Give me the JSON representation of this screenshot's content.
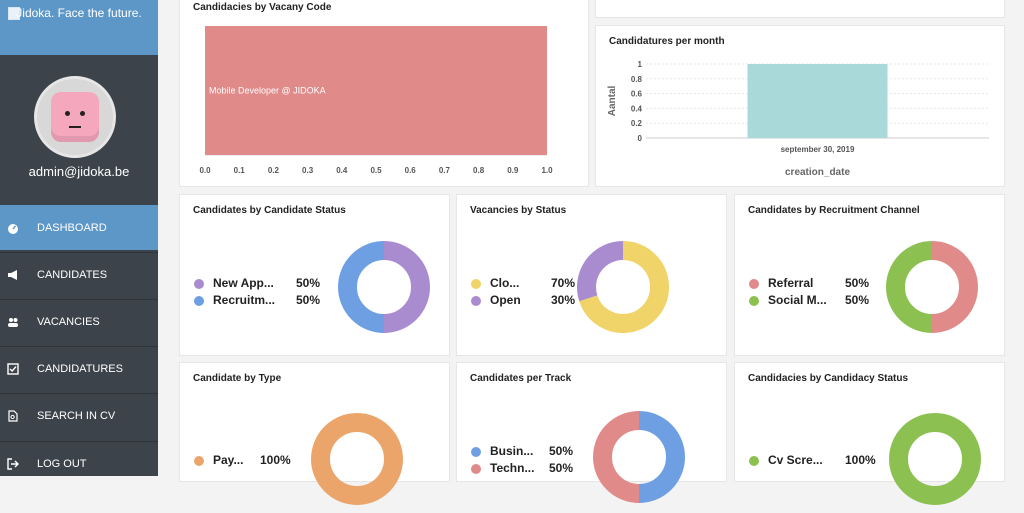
{
  "brand": {
    "text": "Jidoka. Face the future."
  },
  "user": {
    "email": "admin@jidoka.be"
  },
  "nav": [
    {
      "label": "DASHBOARD",
      "icon": "dashboard-icon",
      "active": true
    },
    {
      "label": "CANDIDATES",
      "icon": "megaphone-icon",
      "active": false
    },
    {
      "label": "VACANCIES",
      "icon": "users-icon",
      "active": false
    },
    {
      "label": "CANDIDATURES",
      "icon": "check-square-icon",
      "active": false
    },
    {
      "label": "SEARCH IN CV",
      "icon": "file-search-icon",
      "active": false
    },
    {
      "label": "LOG OUT",
      "icon": "logout-icon",
      "active": false
    }
  ],
  "cards": {
    "vacancy_code": {
      "title": "Candidacies by Vacany Code"
    },
    "per_month": {
      "title": "Candidatures per month"
    },
    "candidate_status": {
      "title": "Candidates by Candidate Status"
    },
    "vacancy_status": {
      "title": "Vacancies by Status"
    },
    "recruitment_channel": {
      "title": "Candidates by Recruitment Channel"
    },
    "candidate_type": {
      "title": "Candidate by Type"
    },
    "per_track": {
      "title": "Candidates per Track"
    },
    "candidacy_status": {
      "title": "Candidacies by Candidacy Status"
    }
  },
  "chart_data": [
    {
      "id": "vacancy_code",
      "type": "bar",
      "orientation": "horizontal",
      "title": "Candidacies by Vacany Code",
      "categories": [
        "Mobile Developer @ JIDOKA"
      ],
      "values": [
        1.0
      ],
      "xlim": [
        0,
        1.0
      ],
      "x_ticks": [
        "0.0",
        "0.1",
        "0.2",
        "0.3",
        "0.4",
        "0.5",
        "0.6",
        "0.7",
        "0.8",
        "0.9",
        "1.0"
      ],
      "color": "#e08a8a"
    },
    {
      "id": "per_month",
      "type": "bar",
      "title": "Candidatures per month",
      "categories": [
        "september 30, 2019"
      ],
      "values": [
        1
      ],
      "ylabel": "Aantal",
      "xlabel": "creation_date",
      "ylim": [
        0,
        1
      ],
      "y_ticks": [
        "0",
        "0.2",
        "0.4",
        "0.6",
        "0.8",
        "1"
      ],
      "color": "#a9d9d9"
    },
    {
      "id": "candidate_status",
      "type": "pie",
      "title": "Candidates by Candidate Status",
      "slices": [
        {
          "label": "New App...",
          "display": "50%",
          "value": 50,
          "color": "#a98ccf"
        },
        {
          "label": "Recruitm...",
          "display": "50%",
          "value": 50,
          "color": "#6f9fe3"
        }
      ]
    },
    {
      "id": "vacancy_status",
      "type": "pie",
      "title": "Vacancies by Status",
      "slices": [
        {
          "label": "Clo...",
          "display": "70%",
          "value": 70,
          "color": "#f0d46a"
        },
        {
          "label": "Open",
          "display": "30%",
          "value": 30,
          "color": "#a98ccf"
        }
      ]
    },
    {
      "id": "recruitment_channel",
      "type": "pie",
      "title": "Candidates by Recruitment Channel",
      "slices": [
        {
          "label": "Referral",
          "display": "50%",
          "value": 50,
          "color": "#e08a8a"
        },
        {
          "label": "Social M...",
          "display": "50%",
          "value": 50,
          "color": "#8cc152"
        }
      ]
    },
    {
      "id": "candidate_type",
      "type": "pie",
      "title": "Candidate by Type",
      "slices": [
        {
          "label": "Pay...",
          "display": "100%",
          "value": 100,
          "color": "#eba56b"
        }
      ]
    },
    {
      "id": "per_track",
      "type": "pie",
      "title": "Candidates per Track",
      "slices": [
        {
          "label": "Busin...",
          "display": "50%",
          "value": 50,
          "color": "#6f9fe3"
        },
        {
          "label": "Techn...",
          "display": "50%",
          "value": 50,
          "color": "#e08a8a"
        }
      ]
    },
    {
      "id": "candidacy_status",
      "type": "pie",
      "title": "Candidacies by Candidacy Status",
      "slices": [
        {
          "label": "Cv Scre...",
          "display": "100%",
          "value": 100,
          "color": "#8cc152"
        }
      ]
    }
  ]
}
